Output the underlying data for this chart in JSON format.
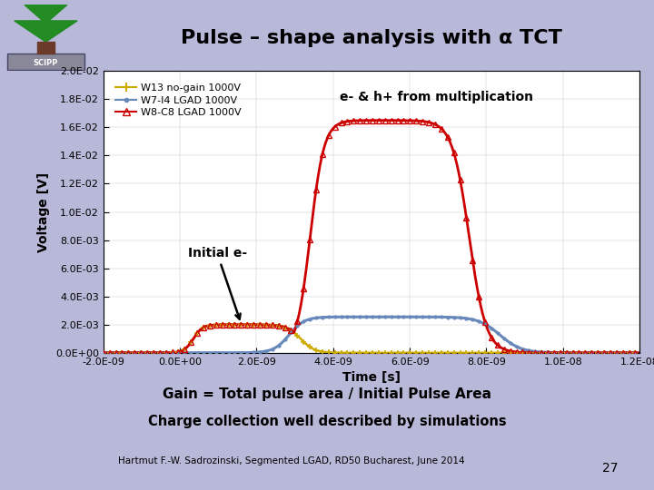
{
  "title": "Pulse – shape analysis with α TCT",
  "xlabel": "Time [s]",
  "ylabel": "Voltage [V]",
  "xlim": [
    -2e-09,
    1.2e-08
  ],
  "ylim": [
    0.0,
    0.02
  ],
  "yticks": [
    0.0,
    0.002,
    0.004,
    0.006,
    0.008,
    0.01,
    0.012,
    0.014,
    0.016,
    0.018,
    0.02
  ],
  "xticks": [
    -2e-09,
    0.0,
    2e-09,
    4e-09,
    6e-09,
    8e-09,
    1e-08,
    1.2e-08
  ],
  "xtick_labels": [
    "-2.0E-09",
    "0.0E+00",
    "2.0E-09",
    "4.0E-09",
    "6.0E-09",
    "8.0E-09",
    "1.0E-08",
    "1.2E-08"
  ],
  "ytick_labels": [
    "0.0E+00",
    "2.0E-03",
    "4.0E-03",
    "6.0E-03",
    "8.0E-03",
    "1.0E-02",
    "1.2E-02",
    "1.4E-02",
    "1.6E-02",
    "1.8E-02",
    "2.0E-02"
  ],
  "bg_color": "#b8b8d8",
  "title_box_color": "#d4d4e8",
  "plot_bg": "#ffffff",
  "line1_color": "#ccaa00",
  "line2_color": "#6688bb",
  "line3_color": "#cc0000",
  "legend_labels": [
    "W13 no-gain 1000V",
    "W7-I4 LGAD 1000V",
    "W8-C8 LGAD 1000V"
  ],
  "annotation_text": "e- & h+ from multiplication",
  "subtitle_gain": "Gain = Total pulse area / Initial Pulse Area",
  "subtitle_charge": "Charge collection well described by simulations",
  "footer": "Hartmut F.-W. Sadrozinski, Segmented LGAD, RD50 Bucharest, June 2014",
  "page_num": "27"
}
